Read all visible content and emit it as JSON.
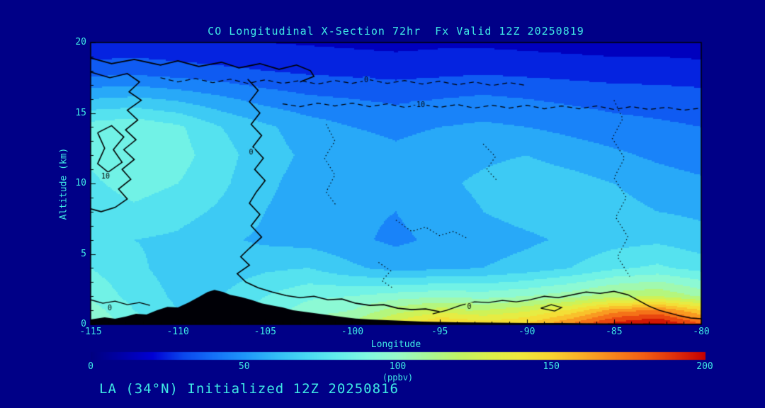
{
  "title": "CO Longitudinal X-Section 72hr  Fx Valid 12Z 20250819",
  "footer": "LA (34°N) Initialized 12Z 20250816",
  "colors": {
    "background": "#000087",
    "text": "#3FE9E4",
    "frame": "#000000",
    "terrain": "#000006",
    "contour": "#000000"
  },
  "chart_data": {
    "type": "filled-contour",
    "title": "CO Longitudinal X-Section 72hr  Fx Valid 12Z 20250819",
    "xlabel": "Longitude",
    "ylabel": "Altitude (km)",
    "xlim": [
      -115,
      -80
    ],
    "ylim": [
      0,
      20
    ],
    "x_ticks": [
      -115,
      -110,
      -105,
      -100,
      -95,
      -90,
      -85,
      -80
    ],
    "y_ticks": [
      0,
      5,
      10,
      15,
      20
    ],
    "x_minor_step": 1,
    "y_minor_step": 1,
    "band_interval": 10,
    "colormap": [
      [
        0,
        "#000080"
      ],
      [
        10,
        "#0000A8"
      ],
      [
        20,
        "#0000D4"
      ],
      [
        30,
        "#0A46EC"
      ],
      [
        40,
        "#1470F8"
      ],
      [
        50,
        "#1E96FA"
      ],
      [
        60,
        "#32BCF6"
      ],
      [
        70,
        "#48D8F2"
      ],
      [
        80,
        "#62ECEC"
      ],
      [
        90,
        "#80F8E0"
      ],
      [
        100,
        "#98FAC8"
      ],
      [
        110,
        "#A8F896"
      ],
      [
        120,
        "#C0F464"
      ],
      [
        130,
        "#DCF04A"
      ],
      [
        140,
        "#F0E83C"
      ],
      [
        150,
        "#F8D430"
      ],
      [
        160,
        "#FAAE26"
      ],
      [
        170,
        "#F8861C"
      ],
      [
        180,
        "#F25E14"
      ],
      [
        190,
        "#E0300A"
      ],
      [
        200,
        "#C40000"
      ]
    ],
    "grid_x": [
      -115,
      -112.5,
      -110,
      -107.5,
      -105,
      -102.5,
      -100,
      -97.5,
      -95,
      -92.5,
      -90,
      -87.5,
      -85,
      -82.5,
      -80
    ],
    "grid_y": [
      0,
      1,
      2,
      4,
      6,
      8,
      10,
      12,
      14,
      16,
      18,
      20
    ],
    "values": [
      [
        100,
        85,
        72,
        75,
        92,
        105,
        112,
        135,
        155,
        147,
        152,
        172,
        195,
        205,
        182
      ],
      [
        95,
        80,
        70,
        72,
        85,
        95,
        100,
        115,
        125,
        120,
        128,
        142,
        165,
        172,
        150
      ],
      [
        88,
        76,
        68,
        70,
        80,
        88,
        90,
        95,
        98,
        96,
        100,
        106,
        116,
        120,
        108
      ],
      [
        80,
        72,
        66,
        64,
        68,
        70,
        62,
        56,
        58,
        60,
        64,
        70,
        78,
        82,
        76
      ],
      [
        72,
        70,
        68,
        62,
        58,
        56,
        52,
        48,
        52,
        55,
        58,
        62,
        66,
        68,
        64
      ],
      [
        75,
        78,
        74,
        68,
        60,
        55,
        52,
        50,
        55,
        60,
        64,
        66,
        64,
        60,
        58
      ],
      [
        78,
        84,
        80,
        72,
        62,
        56,
        54,
        52,
        58,
        62,
        66,
        64,
        60,
        55,
        52
      ],
      [
        82,
        88,
        84,
        74,
        64,
        58,
        55,
        52,
        55,
        58,
        60,
        56,
        52,
        48,
        45
      ],
      [
        85,
        88,
        82,
        70,
        62,
        55,
        50,
        48,
        50,
        52,
        50,
        47,
        44,
        42,
        40
      ],
      [
        60,
        62,
        58,
        52,
        46,
        42,
        40,
        38,
        40,
        42,
        40,
        38,
        36,
        35,
        34
      ],
      [
        35,
        36,
        34,
        32,
        30,
        28,
        27,
        26,
        27,
        28,
        27,
        26,
        25,
        25,
        24
      ],
      [
        22,
        23,
        22,
        21,
        20,
        19,
        18,
        17,
        18,
        18,
        17,
        16,
        15,
        15,
        14
      ]
    ],
    "terrain": [
      [
        -115,
        0.35
      ],
      [
        -114.2,
        0.5
      ],
      [
        -113.6,
        0.4
      ],
      [
        -113,
        0.55
      ],
      [
        -112.4,
        0.75
      ],
      [
        -111.8,
        0.7
      ],
      [
        -111.2,
        1.0
      ],
      [
        -110.6,
        1.25
      ],
      [
        -110,
        1.2
      ],
      [
        -109.4,
        1.55
      ],
      [
        -108.8,
        1.95
      ],
      [
        -108.3,
        2.3
      ],
      [
        -107.9,
        2.45
      ],
      [
        -107.4,
        2.3
      ],
      [
        -107,
        2.1
      ],
      [
        -106.4,
        1.95
      ],
      [
        -105.8,
        1.75
      ],
      [
        -105.2,
        1.5
      ],
      [
        -104.6,
        1.35
      ],
      [
        -104,
        1.2
      ],
      [
        -103.4,
        1.0
      ],
      [
        -102.8,
        0.9
      ],
      [
        -102.2,
        0.8
      ],
      [
        -101.6,
        0.7
      ],
      [
        -101,
        0.6
      ],
      [
        -100.4,
        0.5
      ],
      [
        -99.8,
        0.42
      ],
      [
        -99,
        0.35
      ],
      [
        -98,
        0.3
      ],
      [
        -97,
        0.25
      ],
      [
        -96,
        0.2
      ],
      [
        -94,
        0.15
      ],
      [
        -92,
        0.12
      ],
      [
        -90,
        0.1
      ],
      [
        -88,
        0.1
      ],
      [
        -86,
        0.08
      ],
      [
        -84,
        0.06
      ],
      [
        -82,
        0.05
      ],
      [
        -80,
        0.05
      ]
    ],
    "contour_lines": [
      {
        "style": "solid",
        "width": 1.6,
        "label": "",
        "points": [
          [
            -115,
            18.9
          ],
          [
            -113.8,
            18.5
          ],
          [
            -112.5,
            18.8
          ],
          [
            -111,
            18.4
          ],
          [
            -110,
            18.7
          ],
          [
            -108.8,
            18.3
          ],
          [
            -107.5,
            18.6
          ],
          [
            -106.5,
            18.2
          ],
          [
            -105.3,
            18.5
          ],
          [
            -104.2,
            18.1
          ],
          [
            -103.2,
            18.4
          ],
          [
            -102.4,
            18.0
          ],
          [
            -102.2,
            17.6
          ],
          [
            -103.0,
            17.2
          ]
        ]
      },
      {
        "style": "solid",
        "width": 1.6,
        "label": "0",
        "label_at": [
          -105.8,
          12.2
        ],
        "points": [
          [
            -106.0,
            17.4
          ],
          [
            -105.4,
            16.6
          ],
          [
            -105.9,
            15.8
          ],
          [
            -105.3,
            15.0
          ],
          [
            -105.8,
            14.2
          ],
          [
            -105.2,
            13.4
          ],
          [
            -105.7,
            12.6
          ],
          [
            -105.1,
            11.8
          ],
          [
            -105.6,
            11.0
          ],
          [
            -105.0,
            10.2
          ],
          [
            -105.5,
            9.4
          ],
          [
            -105.9,
            8.6
          ],
          [
            -105.3,
            7.8
          ],
          [
            -105.8,
            7.0
          ],
          [
            -105.2,
            6.2
          ],
          [
            -105.9,
            5.4
          ],
          [
            -106.4,
            4.8
          ],
          [
            -105.9,
            4.2
          ],
          [
            -106.6,
            3.6
          ],
          [
            -106.1,
            3.0
          ],
          [
            -105.4,
            2.6
          ],
          [
            -104.6,
            2.3
          ],
          [
            -103.8,
            2.05
          ],
          [
            -103.0,
            1.9
          ],
          [
            -102.2,
            2.0
          ],
          [
            -101.4,
            1.75
          ],
          [
            -100.6,
            1.8
          ],
          [
            -99.8,
            1.5
          ],
          [
            -99.0,
            1.35
          ],
          [
            -98.2,
            1.4
          ],
          [
            -97.4,
            1.15
          ],
          [
            -96.6,
            1.05
          ],
          [
            -95.8,
            1.1
          ],
          [
            -95.0,
            0.9
          ]
        ]
      },
      {
        "style": "solid",
        "width": 1.6,
        "label": "",
        "points": [
          [
            -115,
            17.9
          ],
          [
            -113.9,
            17.5
          ],
          [
            -112.9,
            17.8
          ],
          [
            -112.2,
            17.2
          ],
          [
            -112.8,
            16.5
          ],
          [
            -112.1,
            15.9
          ],
          [
            -112.9,
            15.2
          ],
          [
            -112.3,
            14.5
          ],
          [
            -113.0,
            13.8
          ],
          [
            -112.4,
            13.1
          ],
          [
            -113.1,
            12.4
          ],
          [
            -112.5,
            11.7
          ],
          [
            -113.2,
            11.0
          ],
          [
            -112.7,
            10.3
          ],
          [
            -113.4,
            9.6
          ],
          [
            -112.9,
            8.9
          ],
          [
            -113.6,
            8.3
          ],
          [
            -114.4,
            8.0
          ],
          [
            -115,
            8.2
          ]
        ]
      },
      {
        "style": "solid",
        "width": 1.6,
        "label": "10",
        "label_at": [
          -114.15,
          10.5
        ],
        "points": [
          [
            -114.6,
            13.6
          ],
          [
            -113.8,
            14.1
          ],
          [
            -113.1,
            13.3
          ],
          [
            -113.7,
            12.4
          ],
          [
            -113.2,
            11.5
          ],
          [
            -114.0,
            10.8
          ],
          [
            -114.6,
            11.4
          ],
          [
            -114.2,
            12.5
          ],
          [
            -114.6,
            13.6
          ]
        ]
      },
      {
        "style": "solid",
        "width": 1.4,
        "label": "0",
        "label_at": [
          -113.9,
          1.15
        ],
        "points": [
          [
            -115,
            1.75
          ],
          [
            -114.3,
            1.5
          ],
          [
            -113.6,
            1.65
          ],
          [
            -112.9,
            1.4
          ],
          [
            -112.2,
            1.55
          ],
          [
            -111.6,
            1.35
          ]
        ]
      },
      {
        "style": "solid",
        "width": 1.4,
        "label": "0",
        "label_at": [
          -93.3,
          1.25
        ],
        "points": [
          [
            -95.4,
            0.75
          ],
          [
            -94.6,
            1.0
          ],
          [
            -93.8,
            1.35
          ],
          [
            -93.0,
            1.6
          ],
          [
            -92.2,
            1.55
          ],
          [
            -91.4,
            1.7
          ],
          [
            -90.6,
            1.6
          ],
          [
            -89.8,
            1.75
          ],
          [
            -89.0,
            2.0
          ],
          [
            -88.2,
            1.9
          ],
          [
            -87.4,
            2.1
          ],
          [
            -86.6,
            2.3
          ],
          [
            -85.8,
            2.2
          ],
          [
            -85.0,
            2.35
          ],
          [
            -84.2,
            2.1
          ],
          [
            -83.6,
            1.7
          ],
          [
            -83.0,
            1.3
          ],
          [
            -82.4,
            1.0
          ],
          [
            -81.8,
            0.8
          ],
          [
            -81.2,
            0.6
          ],
          [
            -80.6,
            0.45
          ],
          [
            -80,
            0.4
          ]
        ]
      },
      {
        "style": "solid",
        "width": 1.2,
        "label": "",
        "points": [
          [
            -89.2,
            1.15
          ],
          [
            -88.6,
            1.4
          ],
          [
            -88.0,
            1.2
          ],
          [
            -88.4,
            0.95
          ],
          [
            -89.2,
            1.15
          ]
        ]
      },
      {
        "style": "dashed",
        "width": 1.2,
        "label": "0",
        "label_at": [
          -99.2,
          17.3
        ],
        "points": [
          [
            -111,
            17.5
          ],
          [
            -110,
            17.2
          ],
          [
            -109,
            17.45
          ],
          [
            -108,
            17.15
          ],
          [
            -107,
            17.4
          ],
          [
            -106,
            17.1
          ],
          [
            -105,
            17.35
          ],
          [
            -104,
            17.1
          ],
          [
            -103,
            17.3
          ],
          [
            -102,
            17.05
          ],
          [
            -101,
            17.3
          ],
          [
            -100,
            17.1
          ],
          [
            -99,
            17.35
          ],
          [
            -98,
            17.1
          ],
          [
            -97,
            17.3
          ],
          [
            -96,
            17.05
          ],
          [
            -95,
            17.25
          ],
          [
            -94,
            17.0
          ],
          [
            -93,
            17.2
          ],
          [
            -92,
            16.95
          ],
          [
            -91,
            17.15
          ],
          [
            -90,
            16.95
          ]
        ]
      },
      {
        "style": "dashed",
        "width": 1.2,
        "label": "-10",
        "label_at": [
          -96.2,
          15.55
        ],
        "points": [
          [
            -104,
            15.65
          ],
          [
            -103,
            15.45
          ],
          [
            -102,
            15.7
          ],
          [
            -101,
            15.5
          ],
          [
            -100,
            15.7
          ],
          [
            -99,
            15.45
          ],
          [
            -98,
            15.65
          ],
          [
            -97,
            15.4
          ],
          [
            -96,
            15.6
          ],
          [
            -95,
            15.4
          ],
          [
            -94,
            15.6
          ],
          [
            -93,
            15.35
          ],
          [
            -92,
            15.55
          ],
          [
            -91,
            15.35
          ],
          [
            -90,
            15.55
          ],
          [
            -89,
            15.3
          ],
          [
            -88,
            15.5
          ],
          [
            -87,
            15.3
          ],
          [
            -86,
            15.5
          ],
          [
            -85,
            15.25
          ],
          [
            -84,
            15.45
          ],
          [
            -83,
            15.25
          ],
          [
            -82,
            15.4
          ],
          [
            -81,
            15.2
          ],
          [
            -80,
            15.35
          ]
        ]
      },
      {
        "style": "dotted",
        "width": 1.2,
        "label": "",
        "points": [
          [
            -101.5,
            14.2
          ],
          [
            -101.0,
            13.0
          ],
          [
            -101.6,
            11.8
          ],
          [
            -101.0,
            10.6
          ],
          [
            -101.5,
            9.4
          ],
          [
            -100.9,
            8.4
          ]
        ]
      },
      {
        "style": "dotted",
        "width": 1.2,
        "label": "",
        "points": [
          [
            -97.5,
            7.4
          ],
          [
            -96.6,
            6.6
          ],
          [
            -95.8,
            6.9
          ],
          [
            -95.0,
            6.3
          ],
          [
            -94.2,
            6.6
          ],
          [
            -93.4,
            6.1
          ]
        ]
      },
      {
        "style": "dotted",
        "width": 1.2,
        "label": "",
        "points": [
          [
            -85.0,
            15.9
          ],
          [
            -84.5,
            14.6
          ],
          [
            -85.1,
            13.2
          ],
          [
            -84.4,
            11.8
          ],
          [
            -85.0,
            10.4
          ],
          [
            -84.3,
            9.0
          ],
          [
            -84.9,
            7.6
          ],
          [
            -84.2,
            6.2
          ],
          [
            -84.8,
            4.8
          ],
          [
            -84.1,
            3.4
          ]
        ]
      },
      {
        "style": "dotted",
        "width": 1.2,
        "label": "",
        "points": [
          [
            -92.5,
            12.8
          ],
          [
            -91.8,
            11.9
          ],
          [
            -92.3,
            11.0
          ],
          [
            -91.7,
            10.2
          ]
        ]
      },
      {
        "style": "dotted",
        "width": 1.2,
        "label": "",
        "points": [
          [
            -98.5,
            4.4
          ],
          [
            -97.8,
            3.8
          ],
          [
            -98.3,
            3.1
          ],
          [
            -97.7,
            2.6
          ]
        ]
      }
    ],
    "colorbar": {
      "min": 0,
      "max": 200,
      "ticks": [
        0,
        50,
        100,
        150,
        200
      ],
      "label": "(ppbv)"
    }
  }
}
